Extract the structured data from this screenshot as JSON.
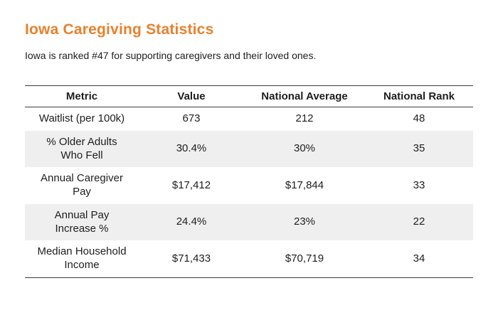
{
  "page": {
    "title": "Iowa Caregiving Statistics",
    "subtitle": "Iowa is ranked #47 for supporting caregivers and their loved ones."
  },
  "colors": {
    "accent_orange": "#E8812D",
    "row_alternate": "#EFEFEF",
    "table_border": "#3B3B3B",
    "text": "#1E1E1E"
  },
  "chart_data": {
    "type": "table",
    "title": "Iowa Caregiving Statistics",
    "columns": [
      "Metric",
      "Value",
      "National Average",
      "National Rank"
    ],
    "rows": [
      [
        "Waitlist (per 100k)",
        "673",
        "212",
        "48"
      ],
      [
        "% Older Adults\nWho Fell",
        "30.4%",
        "30%",
        "35"
      ],
      [
        "Annual Caregiver\nPay",
        "$17,412",
        "$17,844",
        "33"
      ],
      [
        "Annual Pay\nIncrease %",
        "24.4%",
        "23%",
        "22"
      ],
      [
        "Median Household\nIncome",
        "$71,433",
        "$70,719",
        "34"
      ]
    ]
  }
}
